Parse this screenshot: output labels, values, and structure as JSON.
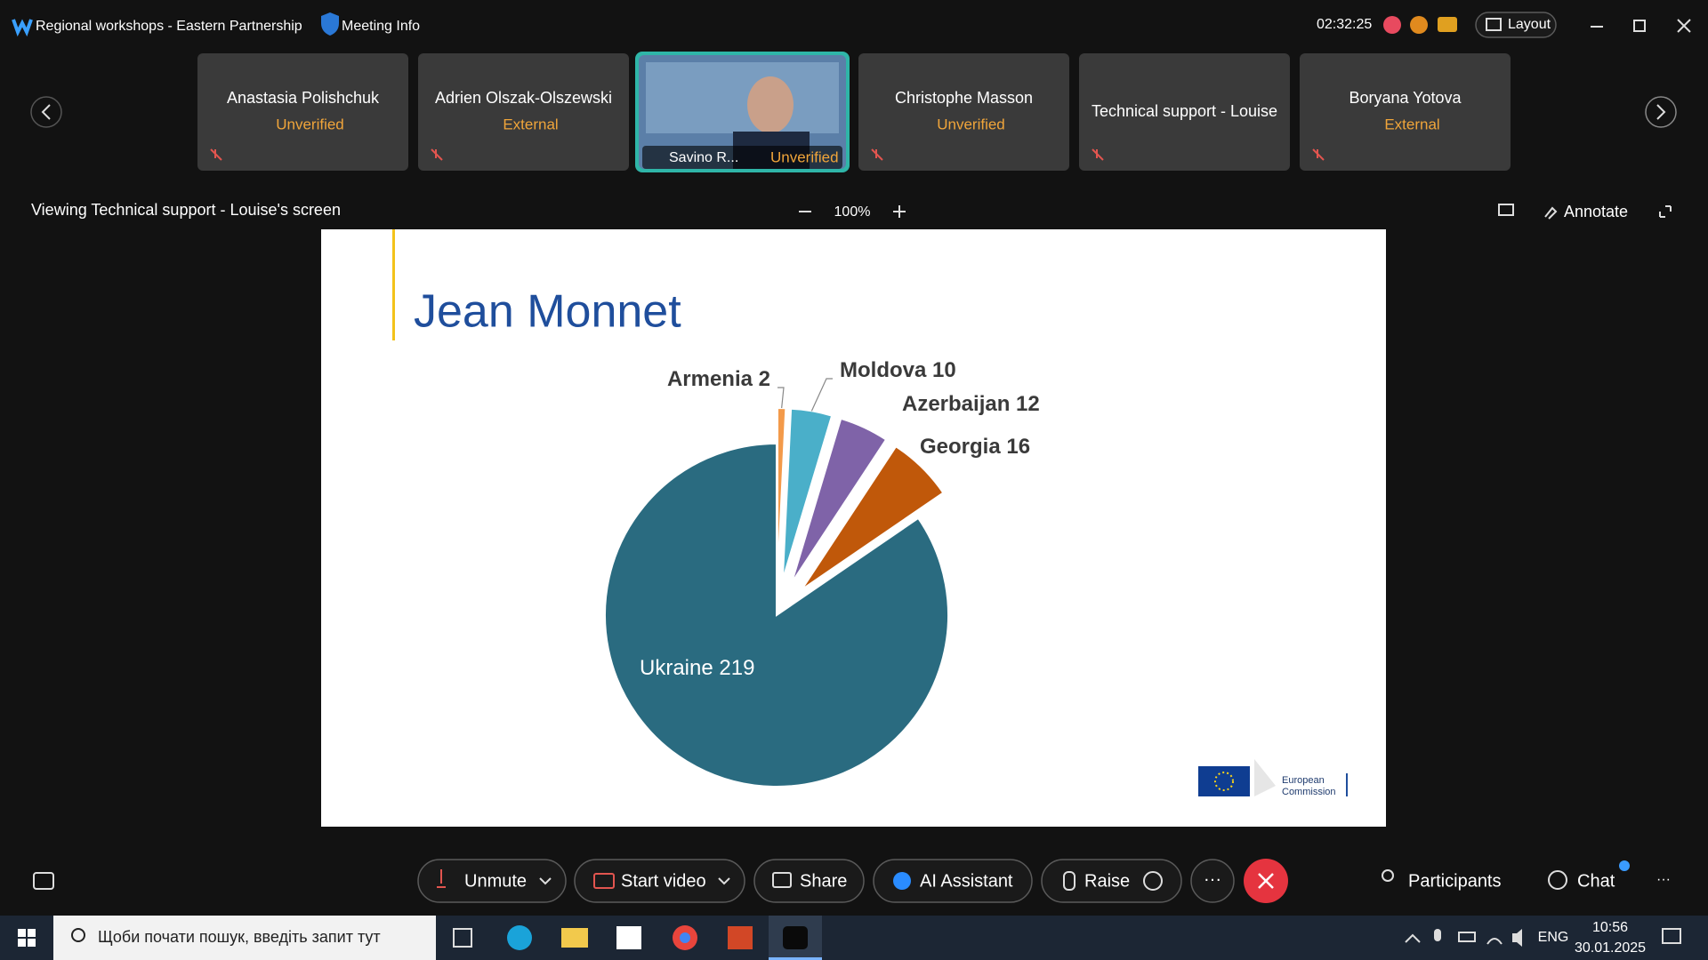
{
  "window": {
    "title": "Regional workshops - Eastern Partnership",
    "meeting_info": "Meeting Info",
    "timer": "02:32:25",
    "layout": "Layout"
  },
  "participants": [
    {
      "name": "Anastasia Polishchuk",
      "status": "Unverified"
    },
    {
      "name": "Adrien Olszak-Olszewski",
      "status": "External"
    },
    {
      "name": "Savino R...",
      "status": "Unverified"
    },
    {
      "name": "Christophe Masson",
      "status": "Unverified"
    },
    {
      "name": "Technical support - Louise"
    },
    {
      "name": "Boryana Yotova",
      "status": "External"
    }
  ],
  "share_bar": {
    "viewing": "Viewing Technical support - Louise's screen",
    "zoom": "100%",
    "annotate": "Annotate"
  },
  "chart_data": {
    "type": "pie",
    "title": "Jean Monnet",
    "categories": [
      "Armenia",
      "Moldova",
      "Azerbaijan",
      "Georgia",
      "Ukraine"
    ],
    "values": [
      2,
      10,
      12,
      16,
      219
    ],
    "colors": [
      "#f39a4a",
      "#4aafc9",
      "#7f63a8",
      "#c0580a",
      "#2a6b80"
    ]
  },
  "slide": {
    "logo_lines": [
      "European",
      "Commission"
    ]
  },
  "toolbar": {
    "unmute": "Unmute",
    "start_video": "Start video",
    "share": "Share",
    "ai_assistant": "AI Assistant",
    "raise": "Raise",
    "participants": "Participants",
    "chat": "Chat"
  },
  "taskbar": {
    "search": "Щоби почати пошук, введіть запит тут",
    "language": "ENG",
    "time": "10:56",
    "date": "30.01.2025"
  }
}
